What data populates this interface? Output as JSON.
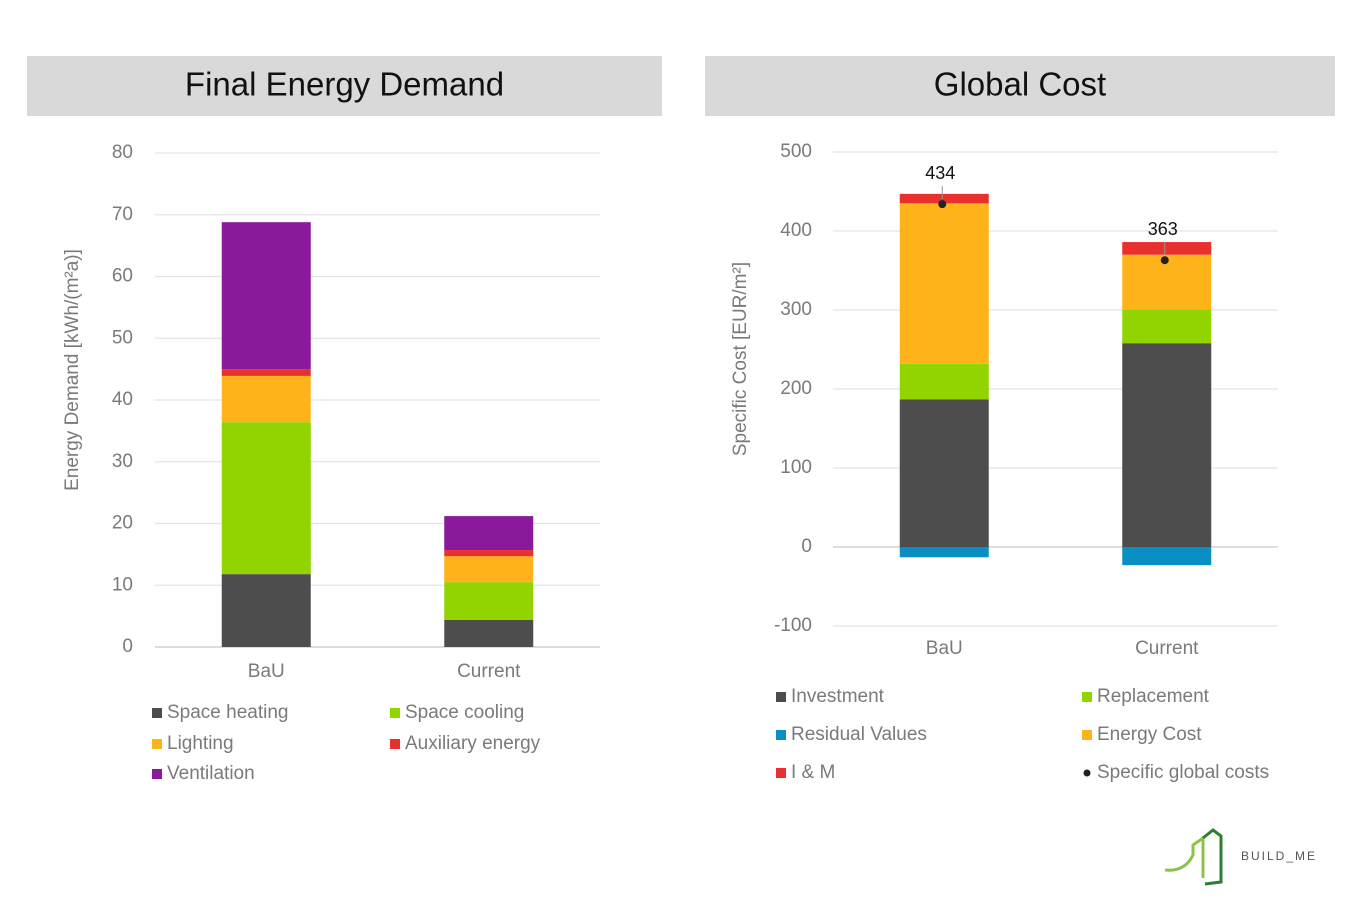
{
  "chart_data": [
    {
      "type": "bar",
      "stacked": true,
      "title": "Final Energy Demand",
      "y_label": "Energy Demand [kWh/(m²a)]",
      "categories": [
        "BaU",
        "Current"
      ],
      "series": [
        {
          "name": "Space heating",
          "color": "#4d4d4d",
          "values": [
            11.8,
            4.4
          ]
        },
        {
          "name": "Space cooling",
          "color": "#92d400",
          "values": [
            24.6,
            6.1
          ]
        },
        {
          "name": "Lighting",
          "color": "#ffb31a",
          "values": [
            7.5,
            4.2
          ]
        },
        {
          "name": "Auxiliary energy",
          "color": "#e8312f",
          "values": [
            1.1,
            1.0
          ]
        },
        {
          "name": "Ventilation",
          "color": "#8a1a9b",
          "values": [
            23.8,
            5.5
          ]
        }
      ],
      "ylim": [
        0,
        80
      ],
      "yticks": [
        0,
        10,
        20,
        30,
        40,
        50,
        60,
        70,
        80
      ],
      "grid": true,
      "legend": "bottom"
    },
    {
      "type": "bar",
      "stacked": true,
      "title": "Global Cost",
      "y_label": "Specific Cost [EUR/m²]",
      "categories": [
        "BaU",
        "Current"
      ],
      "series": [
        {
          "name": "Investment",
          "color": "#4d4d4d",
          "values": [
            187,
            258
          ]
        },
        {
          "name": "Replacement",
          "color": "#92d400",
          "values": [
            45,
            43
          ]
        },
        {
          "name": "Residual Values",
          "color": "#0a8fc4",
          "values": [
            -13,
            -23
          ]
        },
        {
          "name": "Energy Cost",
          "color": "#ffb31a",
          "values": [
            203,
            69
          ]
        },
        {
          "name": "I & M",
          "color": "#e8312f",
          "values": [
            12,
            16
          ]
        },
        {
          "name": "Specific global costs",
          "type": "scatter",
          "color": "#222222",
          "values": [
            434,
            363
          ]
        }
      ],
      "ylim": [
        -100,
        500
      ],
      "yticks": [
        -100,
        0,
        100,
        200,
        300,
        400,
        500
      ],
      "grid": true,
      "legend": "bottom"
    }
  ],
  "logo": {
    "text": "BUILD_ME"
  }
}
